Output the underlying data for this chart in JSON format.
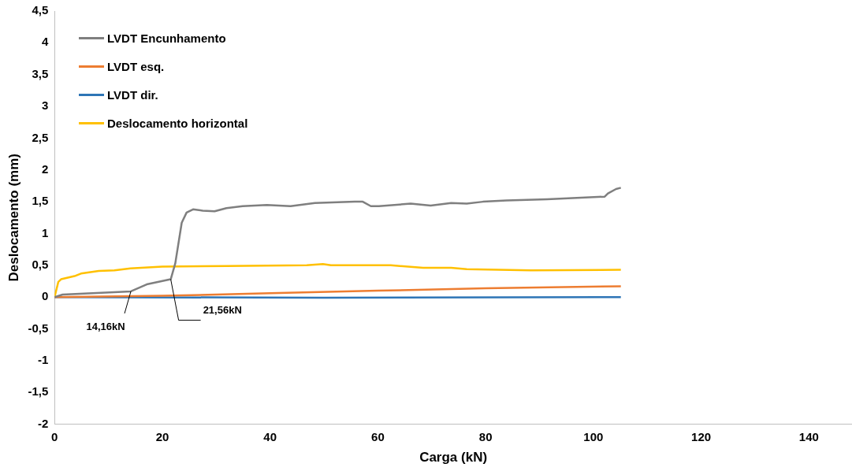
{
  "chart_data": {
    "type": "line",
    "xlabel": "Carga (kN)",
    "ylabel": "Deslocamento (mm)",
    "xlim": [
      0,
      148
    ],
    "xticks": [
      0,
      20,
      40,
      60,
      80,
      100,
      120,
      140
    ],
    "ylim": [
      -2,
      4.5
    ],
    "yticks": [
      {
        "value": -2,
        "label": "-2"
      },
      {
        "value": -1.5,
        "label": "-1,5"
      },
      {
        "value": -1,
        "label": "-1"
      },
      {
        "value": -0.5,
        "label": "-0,5"
      },
      {
        "value": 0,
        "label": "0"
      },
      {
        "value": 0.5,
        "label": "0,5"
      },
      {
        "value": 1,
        "label": "1"
      },
      {
        "value": 1.5,
        "label": "1,5"
      },
      {
        "value": 2,
        "label": "2"
      },
      {
        "value": 2.5,
        "label": "2,5"
      },
      {
        "value": 3,
        "label": "3"
      },
      {
        "value": 3.5,
        "label": "3,5"
      },
      {
        "value": 4,
        "label": "4"
      },
      {
        "value": 4.5,
        "label": "4,5"
      }
    ],
    "grid": false,
    "legend": "top left",
    "marker": "none",
    "line_style": "solid",
    "annotations": [
      {
        "text": "14,16kN",
        "x": 14.16,
        "y": 0.09
      },
      {
        "text": "21,56kN",
        "x": 21.56,
        "y": 0.28
      }
    ],
    "series": [
      {
        "name": "LVDT Encunhamento",
        "color": "#7f7f7f",
        "x": [
          0,
          1.5,
          14.16,
          17.1,
          21.56,
          22.4,
          23.6,
          24.5,
          25.7,
          27.5,
          29.7,
          31.9,
          34.9,
          39.4,
          43.8,
          48.3,
          55.7,
          57.2,
          58.7,
          60.2,
          66.1,
          69.8,
          73.6,
          76.5,
          79.5,
          83.9,
          91.4,
          102.1,
          102.7,
          104.2,
          105.1
        ],
        "values": [
          0,
          0.04,
          0.09,
          0.2,
          0.28,
          0.53,
          1.17,
          1.33,
          1.38,
          1.36,
          1.35,
          1.4,
          1.43,
          1.45,
          1.43,
          1.48,
          1.5,
          1.5,
          1.43,
          1.43,
          1.47,
          1.44,
          1.48,
          1.47,
          1.5,
          1.52,
          1.54,
          1.58,
          1.63,
          1.7,
          1.72
        ]
      },
      {
        "name": "LVDT esq.",
        "color": "#ed7d31",
        "x": [
          0,
          20,
          40,
          60,
          80,
          105.1
        ],
        "values": [
          0,
          0.02,
          0.06,
          0.1,
          0.14,
          0.17
        ]
      },
      {
        "name": "LVDT dir.",
        "color": "#2e75b6",
        "x": [
          0,
          50,
          105.1
        ],
        "values": [
          0,
          -0.01,
          0
        ]
      },
      {
        "name": "Deslocamento horizontal",
        "color": "#ffc000",
        "x": [
          0,
          0.7,
          1.2,
          3.7,
          4.9,
          8.2,
          11.1,
          14.1,
          20,
          31.9,
          46.8,
          49.8,
          51.3,
          62.4,
          68.4,
          73.6,
          76.5,
          88.4,
          105.1
        ],
        "values": [
          0,
          0.24,
          0.28,
          0.33,
          0.37,
          0.41,
          0.42,
          0.45,
          0.48,
          0.49,
          0.5,
          0.52,
          0.5,
          0.5,
          0.46,
          0.46,
          0.44,
          0.42,
          0.43
        ]
      }
    ]
  }
}
